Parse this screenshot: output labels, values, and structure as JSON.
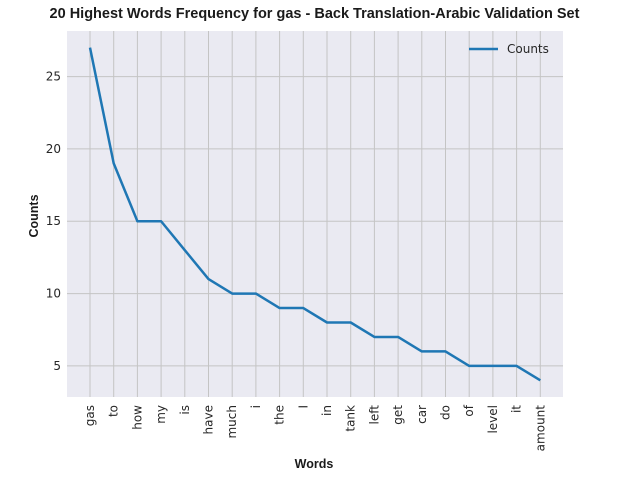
{
  "chart_data": {
    "type": "line",
    "title": "20 Highest Words Frequency for gas - Back Translation-Arabic Validation Set",
    "xlabel": "Words",
    "ylabel": "Counts",
    "categories": [
      "gas",
      "to",
      "how",
      "my",
      "is",
      "have",
      "much",
      "i",
      "the",
      "I",
      "in",
      "tank",
      "left",
      "get",
      "car",
      "do",
      "of",
      "level",
      "it",
      "amount"
    ],
    "series": [
      {
        "name": "Counts",
        "values": [
          27,
          19,
          15,
          15,
          13,
          11,
          10,
          10,
          9,
          9,
          8,
          8,
          7,
          7,
          6,
          6,
          5,
          5,
          5,
          4
        ]
      }
    ],
    "yticks": [
      5,
      10,
      15,
      20,
      25
    ],
    "ylim": [
      2.85,
      28.15
    ],
    "grid": true,
    "legend_position": "top-right",
    "colors": {
      "line": "#1f77b4",
      "plot_bg": "#eaeaf2",
      "grid": "#c4c4c4"
    }
  }
}
